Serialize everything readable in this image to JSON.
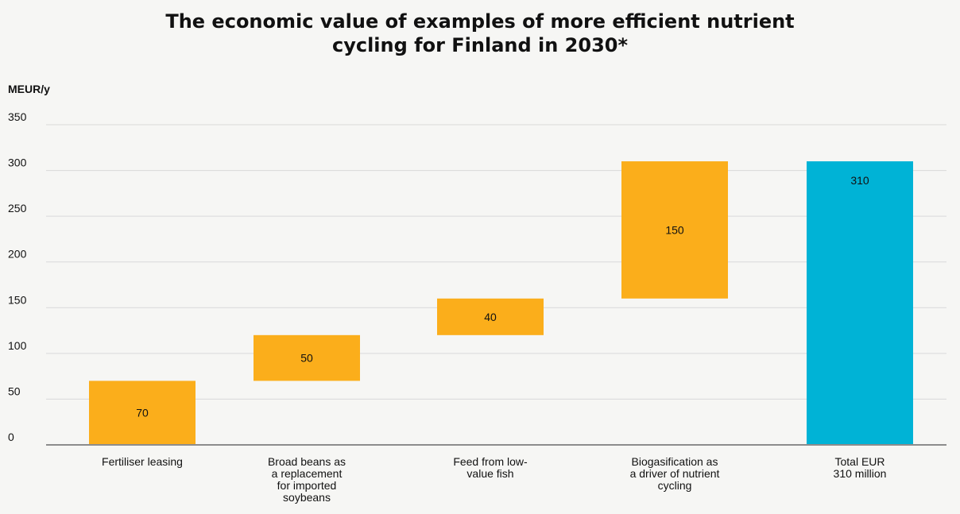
{
  "title_lines": [
    "The economic value of examples of more efficient nutrient",
    "cycling for Finland in 2030*"
  ],
  "colors": {
    "increment": "#fbae1b",
    "total": "#00b3d6",
    "grid": "#d9d9d9",
    "axis": "#8c8c8c"
  },
  "chart_data": {
    "type": "bar",
    "subtype": "waterfall",
    "title": "The economic value of examples of more efficient nutrient cycling for Finland in 2030*",
    "ylabel": "MEUR/y",
    "ylim": [
      0,
      350
    ],
    "yticks": [
      0,
      50,
      100,
      150,
      200,
      250,
      300,
      350
    ],
    "grid": true,
    "categories": [
      [
        "Fertiliser leasing"
      ],
      [
        "Broad beans as",
        "a replacement",
        "for imported",
        "soybeans"
      ],
      [
        "Feed from low-",
        "value fish"
      ],
      [
        "Biogasification as",
        "a driver of nutrient",
        "cycling"
      ],
      [
        "Total EUR",
        "310 million"
      ]
    ],
    "bars": [
      {
        "base": 0,
        "value": 70,
        "label": "70",
        "kind": "increment"
      },
      {
        "base": 70,
        "value": 50,
        "label": "50",
        "kind": "increment"
      },
      {
        "base": 120,
        "value": 40,
        "label": "40",
        "kind": "increment"
      },
      {
        "base": 160,
        "value": 150,
        "label": "150",
        "kind": "increment"
      },
      {
        "base": 0,
        "value": 310,
        "label": "310",
        "kind": "total"
      }
    ]
  }
}
